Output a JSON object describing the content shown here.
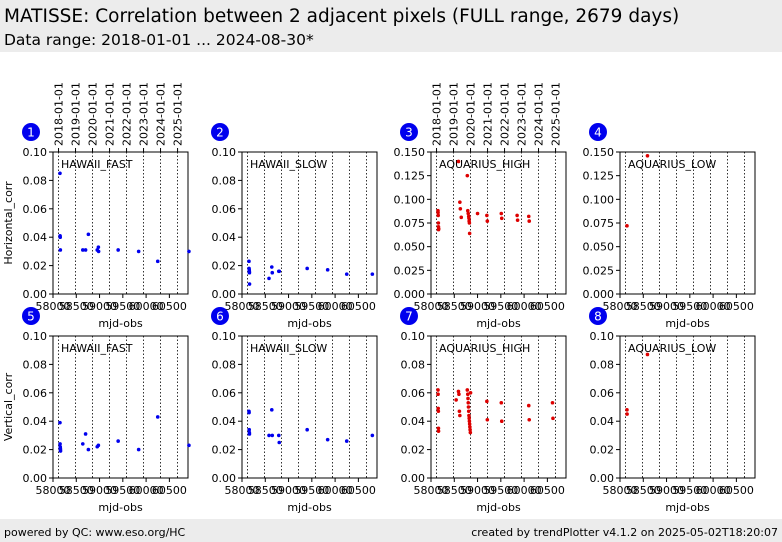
{
  "header": {
    "title": "MATISSE: Correlation between 2 adjacent pixels (FULL range, 2679 days)",
    "subtitle": "Data range: 2018-01-01 ... 2024-08-30*"
  },
  "footer": {
    "left": "powered by QC: www.eso.org/HC",
    "right": "created by trendPlotter v4.1.2 on 2025-05-02T18:20:07"
  },
  "colors": {
    "blue": "#0000ee",
    "red": "#dd0000",
    "badge": "#0000ee"
  },
  "chart_data": [
    {
      "type": "scatter",
      "panel_number": "1",
      "label": "HAWAII_FAST",
      "xlabel": "mjd-obs",
      "ylabel": "Horizontal_corr",
      "ylim": [
        0,
        0.1
      ],
      "y_ticks": [
        "0.00",
        "0.02",
        "0.04",
        "0.06",
        "0.08",
        "0.10"
      ],
      "x_ticks": [
        "58000",
        "58500",
        "59000",
        "59500",
        "60000",
        "60500"
      ],
      "top_date_ticks": [
        "2018-01-01",
        "2019-01-01",
        "2020-01-01",
        "2021-01-01",
        "2022-01-01",
        "2023-01-01",
        "2024-01-01",
        "2025-01-01"
      ],
      "color": "blue",
      "x": [
        58150,
        58152,
        58155,
        58158,
        58640,
        58700,
        58760,
        58950,
        58975,
        58980,
        59400,
        59840,
        60250,
        60920
      ],
      "y": [
        0.085,
        0.041,
        0.04,
        0.031,
        0.031,
        0.031,
        0.042,
        0.031,
        0.033,
        0.03,
        0.031,
        0.03,
        0.023,
        0.03
      ]
    },
    {
      "type": "scatter",
      "panel_number": "2",
      "label": "HAWAII_SLOW",
      "xlabel": "mjd-obs",
      "ylabel": "",
      "ylim": [
        0,
        0.1
      ],
      "y_ticks": [
        "0.00",
        "0.02",
        "0.04",
        "0.06",
        "0.08",
        "0.10"
      ],
      "x_ticks": [
        "58000",
        "58500",
        "59000",
        "59500",
        "60000",
        "60500"
      ],
      "color": "blue",
      "x": [
        58150,
        58152,
        58155,
        58158,
        58160,
        58162,
        58580,
        58640,
        58650,
        58790,
        58800,
        59400,
        59840,
        60250,
        60800
      ],
      "y": [
        0.023,
        0.018,
        0.017,
        0.016,
        0.015,
        0.007,
        0.011,
        0.019,
        0.015,
        0.016,
        0.016,
        0.018,
        0.017,
        0.014,
        0.014
      ]
    },
    {
      "type": "scatter",
      "panel_number": "3",
      "label": "AQUARIUS_HIGH",
      "xlabel": "mjd-obs",
      "ylabel": "",
      "ylim": [
        0,
        0.15
      ],
      "y_ticks": [
        "0.000",
        "0.025",
        "0.050",
        "0.075",
        "0.100",
        "0.125",
        "0.150"
      ],
      "x_ticks": [
        "58000",
        "58500",
        "59000",
        "59500",
        "60000",
        "60500"
      ],
      "top_date_ticks": [
        "2018-01-01",
        "2019-01-01",
        "2020-01-01",
        "2021-01-01",
        "2022-01-01",
        "2023-01-01",
        "2024-01-01",
        "2025-01-01"
      ],
      "color": "red",
      "x": [
        58150,
        58152,
        58155,
        58158,
        58160,
        58162,
        58165,
        58590,
        58620,
        58630,
        58650,
        58780,
        58790,
        58800,
        58810,
        58815,
        58820,
        58825,
        58830,
        59000,
        59200,
        59210,
        59510,
        59520,
        59850,
        59860,
        60100,
        60110
      ],
      "y": [
        0.088,
        0.086,
        0.083,
        0.075,
        0.071,
        0.068,
        0.069,
        0.14,
        0.097,
        0.09,
        0.081,
        0.125,
        0.088,
        0.085,
        0.082,
        0.08,
        0.077,
        0.075,
        0.064,
        0.085,
        0.083,
        0.077,
        0.085,
        0.08,
        0.083,
        0.078,
        0.082,
        0.077
      ]
    },
    {
      "type": "scatter",
      "panel_number": "4",
      "label": "AQUARIUS_LOW",
      "xlabel": "mjd-obs",
      "ylabel": "",
      "ylim": [
        0,
        0.15
      ],
      "y_ticks": [
        "0.000",
        "0.025",
        "0.050",
        "0.075",
        "0.100",
        "0.125",
        "0.150"
      ],
      "x_ticks": [
        "58000",
        "58500",
        "59000",
        "59500",
        "60000",
        "60500"
      ],
      "color": "red",
      "x": [
        58150,
        58590
      ],
      "y": [
        0.072,
        0.146
      ]
    },
    {
      "type": "scatter",
      "panel_number": "5",
      "label": "HAWAII_FAST",
      "xlabel": "mjd-obs",
      "ylabel": "Vertical_corr",
      "ylim": [
        0,
        0.1
      ],
      "y_ticks": [
        "0.00",
        "0.02",
        "0.04",
        "0.06",
        "0.08",
        "0.10"
      ],
      "x_ticks": [
        "58000",
        "58500",
        "59000",
        "59500",
        "60000",
        "60500"
      ],
      "color": "blue",
      "x": [
        58150,
        58152,
        58155,
        58158,
        58160,
        58162,
        58640,
        58700,
        58760,
        58950,
        58975,
        59400,
        59840,
        60250,
        60920
      ],
      "y": [
        0.039,
        0.024,
        0.022,
        0.021,
        0.02,
        0.019,
        0.024,
        0.031,
        0.02,
        0.022,
        0.023,
        0.026,
        0.02,
        0.043,
        0.023
      ]
    },
    {
      "type": "scatter",
      "panel_number": "6",
      "label": "HAWAII_SLOW",
      "xlabel": "mjd-obs",
      "ylabel": "",
      "ylim": [
        0,
        0.1
      ],
      "y_ticks": [
        "0.00",
        "0.02",
        "0.04",
        "0.06",
        "0.08",
        "0.10"
      ],
      "x_ticks": [
        "58000",
        "58500",
        "59000",
        "59500",
        "60000",
        "60500"
      ],
      "color": "blue",
      "x": [
        58150,
        58152,
        58155,
        58158,
        58160,
        58580,
        58640,
        58650,
        58790,
        58800,
        59400,
        59840,
        60250,
        60800
      ],
      "y": [
        0.047,
        0.046,
        0.034,
        0.032,
        0.031,
        0.03,
        0.048,
        0.03,
        0.03,
        0.025,
        0.034,
        0.027,
        0.026,
        0.03
      ],
      "extra": []
    },
    {
      "type": "scatter",
      "panel_number": "7",
      "label": "AQUARIUS_HIGH",
      "xlabel": "mjd-obs",
      "ylabel": "",
      "ylim": [
        0,
        0.1
      ],
      "y_ticks": [
        "0.00",
        "0.02",
        "0.04",
        "0.06",
        "0.08",
        "0.10"
      ],
      "x_ticks": [
        "58000",
        "58500",
        "59000",
        "59500",
        "60000",
        "60500"
      ],
      "color": "red",
      "x": [
        58150,
        58152,
        58155,
        58158,
        58160,
        58162,
        58540,
        58590,
        58600,
        58610,
        58620,
        58780,
        58790,
        58795,
        58800,
        58805,
        58810,
        58815,
        58820,
        58825,
        58830,
        58835,
        58840,
        58845,
        58850,
        59200,
        59210,
        59510,
        59520,
        60100,
        60110,
        60610,
        60620
      ],
      "y": [
        0.062,
        0.059,
        0.049,
        0.047,
        0.035,
        0.033,
        0.055,
        0.061,
        0.059,
        0.047,
        0.044,
        0.062,
        0.059,
        0.056,
        0.053,
        0.05,
        0.047,
        0.044,
        0.042,
        0.04,
        0.038,
        0.036,
        0.034,
        0.032,
        0.06,
        0.054,
        0.041,
        0.053,
        0.04,
        0.051,
        0.041,
        0.053,
        0.042
      ]
    },
    {
      "type": "scatter",
      "panel_number": "8",
      "label": "AQUARIUS_LOW",
      "xlabel": "mjd-obs",
      "ylabel": "",
      "ylim": [
        0,
        0.1
      ],
      "y_ticks": [
        "0.00",
        "0.02",
        "0.04",
        "0.06",
        "0.08",
        "0.10"
      ],
      "x_ticks": [
        "58000",
        "58500",
        "59000",
        "59500",
        "60000",
        "60500"
      ],
      "color": "red",
      "x": [
        58150,
        58152,
        58590
      ],
      "y": [
        0.048,
        0.045,
        0.087
      ]
    }
  ]
}
